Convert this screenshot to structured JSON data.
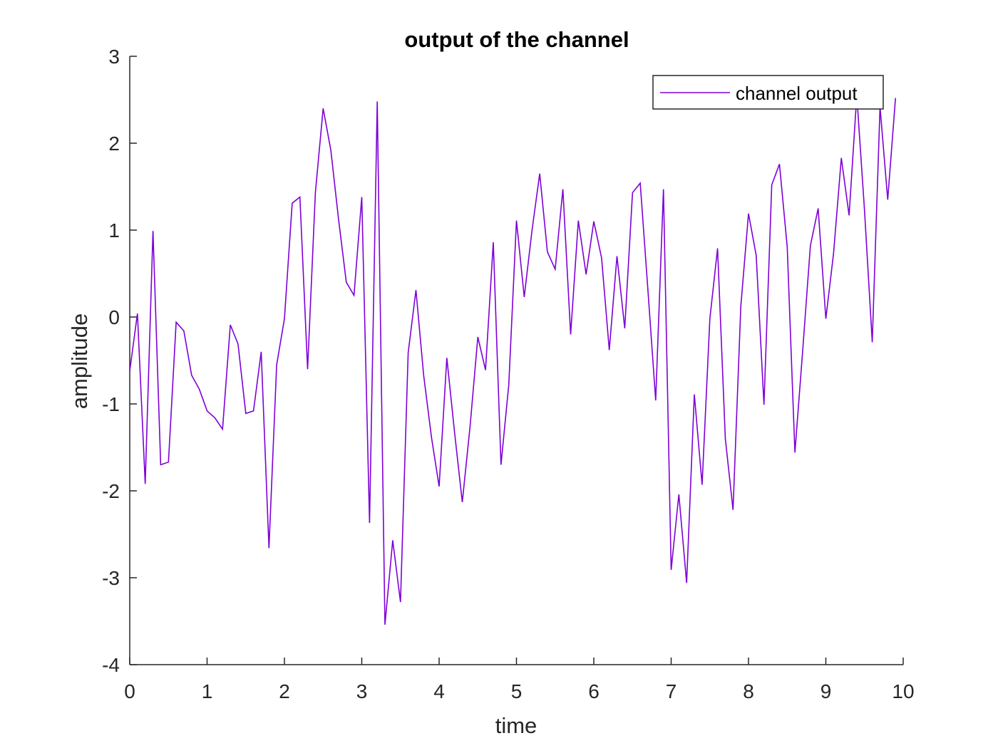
{
  "chart_data": {
    "type": "line",
    "title": "output of the channel",
    "xlabel": "time",
    "ylabel": "amplitude",
    "xlim": [
      0,
      10
    ],
    "ylim": [
      -4,
      3
    ],
    "xticks": [
      0,
      1,
      2,
      3,
      4,
      5,
      6,
      7,
      8,
      9,
      10
    ],
    "yticks": [
      -4,
      -3,
      -2,
      -1,
      0,
      1,
      2,
      3
    ],
    "xtick_labels": [
      "0",
      "1",
      "2",
      "3",
      "4",
      "5",
      "6",
      "7",
      "8",
      "9",
      "10"
    ],
    "ytick_labels": [
      "-4",
      "-3",
      "-2",
      "-1",
      "0",
      "1",
      "2",
      "3"
    ],
    "grid": false,
    "legend_position": "top-right",
    "series": [
      {
        "name": "channel output",
        "color": "#7e00d6",
        "x": [
          0,
          0.1,
          0.2,
          0.3,
          0.4,
          0.5,
          0.6,
          0.7,
          0.8,
          0.9,
          1.0,
          1.1,
          1.2,
          1.3,
          1.4,
          1.5,
          1.6,
          1.7,
          1.8,
          1.9,
          2.0,
          2.1,
          2.2,
          2.3,
          2.4,
          2.5,
          2.6,
          2.7,
          2.8,
          2.9,
          3.0,
          3.1,
          3.2,
          3.3,
          3.4,
          3.5,
          3.6,
          3.7,
          3.8,
          3.9,
          4.0,
          4.1,
          4.2,
          4.3,
          4.4,
          4.5,
          4.6,
          4.7,
          4.8,
          4.9,
          5.0,
          5.1,
          5.2,
          5.3,
          5.4,
          5.5,
          5.6,
          5.7,
          5.8,
          5.9,
          6.0,
          6.1,
          6.2,
          6.3,
          6.4,
          6.5,
          6.6,
          6.7,
          6.8,
          6.9,
          7.0,
          7.1,
          7.2,
          7.3,
          7.4,
          7.5,
          7.6,
          7.7,
          7.8,
          7.9,
          8.0,
          8.1,
          8.2,
          8.3,
          8.4,
          8.5,
          8.6,
          8.7,
          8.8,
          8.9,
          9.0,
          9.1,
          9.2,
          9.3,
          9.4,
          9.5,
          9.6,
          9.7,
          9.8,
          9.9
        ],
        "y": [
          -0.62,
          0.04,
          -1.92,
          0.99,
          -1.7,
          -1.67,
          -0.06,
          -0.16,
          -0.67,
          -0.83,
          -1.08,
          -1.16,
          -1.29,
          -0.09,
          -0.31,
          -1.11,
          -1.08,
          -0.4,
          -2.66,
          -0.55,
          -0.02,
          1.31,
          1.38,
          -0.6,
          1.43,
          2.4,
          1.92,
          1.12,
          0.4,
          0.25,
          1.38,
          -2.37,
          2.48,
          -3.54,
          -2.57,
          -3.28,
          -0.41,
          0.31,
          -0.67,
          -1.38,
          -1.95,
          -0.47,
          -1.33,
          -2.13,
          -1.26,
          -0.23,
          -0.61,
          0.86,
          -1.7,
          -0.78,
          1.11,
          0.23,
          0.99,
          1.65,
          0.75,
          0.55,
          1.47,
          -0.2,
          1.11,
          0.49,
          1.1,
          0.68,
          -0.38,
          0.7,
          -0.13,
          1.43,
          1.54,
          0.3,
          -0.96,
          1.47,
          -2.91,
          -2.04,
          -3.06,
          -0.89,
          -1.93,
          -0.02,
          0.79,
          -1.4,
          -2.22,
          0.12,
          1.19,
          0.71,
          -1.01,
          1.52,
          1.76,
          0.81,
          -1.56,
          -0.4,
          0.82,
          1.25,
          -0.02,
          0.73,
          1.83,
          1.17,
          2.55,
          1.22,
          -0.29,
          2.42,
          1.35,
          2.52
        ]
      }
    ]
  }
}
